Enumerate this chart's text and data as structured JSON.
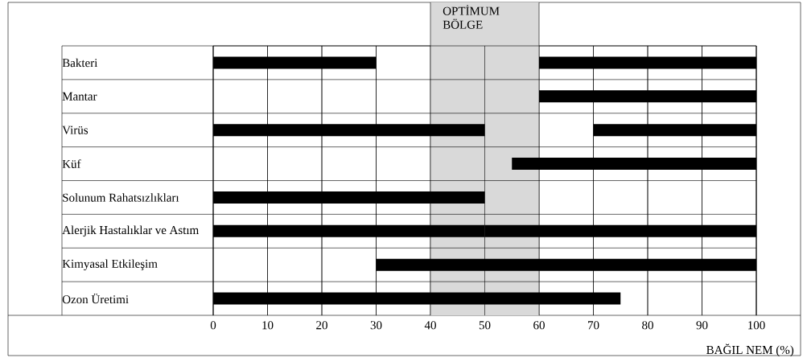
{
  "chart_data": {
    "type": "bar",
    "orientation": "horizontal",
    "categories": [
      "Bakteri",
      "Mantar",
      "Virüs",
      "Küf",
      "Solunum Rahatsızlıkları",
      "Alerjik Hastalıklar ve Astım",
      "Kimyasal Etkileşim",
      "Ozon Üretimi"
    ],
    "series": [
      {
        "color": "#000000",
        "base": [
          0,
          null,
          0,
          null,
          0,
          0,
          null,
          0
        ],
        "values": [
          30,
          null,
          50,
          null,
          50,
          50,
          null,
          75
        ]
      },
      {
        "color": "#000000",
        "base": [
          60,
          60,
          70,
          55,
          null,
          50,
          30,
          null
        ],
        "values": [
          40,
          40,
          30,
          45,
          null,
          50,
          70,
          null
        ]
      }
    ],
    "xlim": [
      0,
      100
    ],
    "xticks": [
      0,
      10,
      20,
      30,
      40,
      50,
      60,
      70,
      80,
      90,
      100
    ],
    "xlabel": "BAĞIL NEM (%)",
    "grid": "x",
    "bands": [
      {
        "axis": "x",
        "from": 40,
        "to": 60,
        "label": "OPTİMUM BÖLGE",
        "color": "#d9d9d9"
      }
    ]
  }
}
